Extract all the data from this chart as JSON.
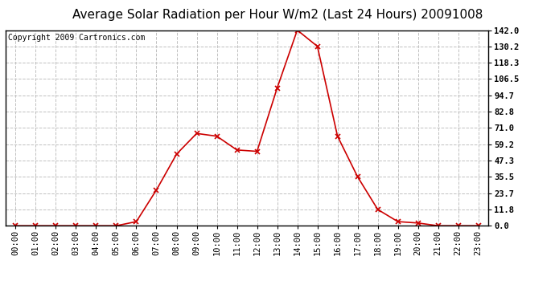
{
  "title": "Average Solar Radiation per Hour W/m2 (Last 24 Hours) 20091008",
  "copyright_text": "Copyright 2009 Cartronics.com",
  "x_labels": [
    "00:00",
    "01:00",
    "02:00",
    "03:00",
    "04:00",
    "05:00",
    "06:00",
    "07:00",
    "08:00",
    "09:00",
    "10:00",
    "11:00",
    "12:00",
    "13:00",
    "14:00",
    "15:00",
    "16:00",
    "17:00",
    "18:00",
    "19:00",
    "20:00",
    "21:00",
    "22:00",
    "23:00"
  ],
  "y_values": [
    0.0,
    0.0,
    0.0,
    0.0,
    0.0,
    0.0,
    3.0,
    26.0,
    52.0,
    67.0,
    65.0,
    55.0,
    54.0,
    100.0,
    142.0,
    130.2,
    65.0,
    35.5,
    11.8,
    3.0,
    2.0,
    0.0,
    0.0,
    0.0
  ],
  "line_color": "#cc0000",
  "marker": "x",
  "marker_color": "#cc0000",
  "marker_size": 4,
  "background_color": "#ffffff",
  "plot_bg_color": "#ffffff",
  "grid_color": "#c0c0c0",
  "grid_style": "--",
  "y_tick_labels": [
    "0.0",
    "11.8",
    "23.7",
    "35.5",
    "47.3",
    "59.2",
    "71.0",
    "82.8",
    "94.7",
    "106.5",
    "118.3",
    "130.2",
    "142.0"
  ],
  "y_ticks": [
    0.0,
    11.8,
    23.7,
    35.5,
    47.3,
    59.2,
    71.0,
    82.8,
    94.7,
    106.5,
    118.3,
    130.2,
    142.0
  ],
  "y_max": 142.0,
  "y_min": 0.0,
  "title_fontsize": 11,
  "copyright_fontsize": 7,
  "tick_fontsize": 7.5,
  "border_color": "#000000"
}
